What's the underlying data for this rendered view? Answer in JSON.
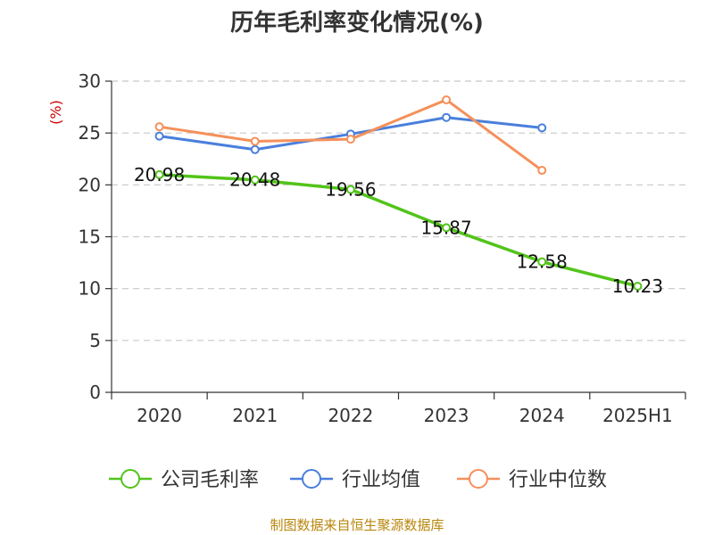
{
  "chart_data": {
    "type": "line",
    "title": "历年毛利率变化情况(%)",
    "ylabel": "(%)",
    "categories": [
      "2020",
      "2021",
      "2022",
      "2023",
      "2024",
      "2025H1"
    ],
    "ylim": [
      0,
      30
    ],
    "yticks": [
      "0",
      "5",
      "10",
      "15",
      "20",
      "25",
      "30"
    ],
    "grid": true,
    "legend_position": "bottom",
    "series": [
      {
        "name": "公司毛利率",
        "color": "#52c41a",
        "values": [
          20.98,
          20.48,
          19.56,
          15.87,
          12.58,
          10.23
        ],
        "labels": [
          "20.98",
          "20.48",
          "19.56",
          "15.87",
          "12.58",
          "10.23"
        ]
      },
      {
        "name": "行业均值",
        "color": "#4a7fdc",
        "values": [
          24.7,
          23.4,
          24.9,
          26.5,
          25.5,
          null
        ]
      },
      {
        "name": "行业中位数",
        "color": "#f5905a",
        "values": [
          25.6,
          24.2,
          24.4,
          28.2,
          21.4,
          null
        ]
      }
    ],
    "source": "制图数据来自恒生聚源数据库"
  }
}
